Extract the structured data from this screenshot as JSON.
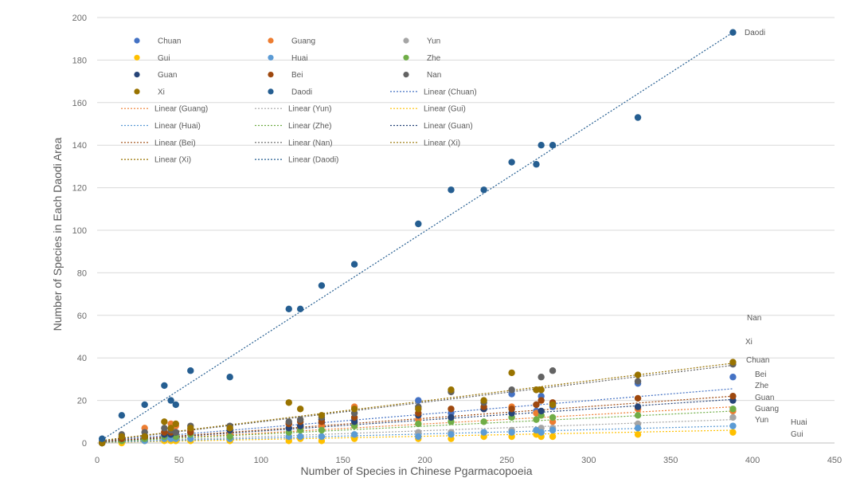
{
  "chart_data": {
    "type": "scatter",
    "title": "",
    "xlabel": "Number of Species in Chinese Pgarmacopoeia",
    "ylabel": "Number of Species in Each Daodi Area",
    "xlim": [
      0,
      450
    ],
    "ylim": [
      0,
      200
    ],
    "xticks": [
      0,
      50,
      100,
      150,
      200,
      250,
      300,
      350,
      400,
      450
    ],
    "yticks": [
      0,
      20,
      40,
      60,
      80,
      100,
      120,
      140,
      160,
      180,
      200
    ],
    "grid": "horizontal",
    "legend": "top-left",
    "legend_entries": [
      "Chuan",
      "Guang",
      "Yun",
      "Gui",
      "Huai",
      "Zhe",
      "Guan",
      "Bei",
      "Nan",
      "Xi",
      "Daodi",
      "Linear (Chuan)",
      "Linear (Guang)",
      "Linear (Yun)",
      "Linear (Gui)",
      "Linear (Huai)",
      "Linear (Zhe)",
      "Linear (Guan)",
      "Linear (Bei)",
      "Linear (Nan)",
      "Linear (Xi)",
      "Linear (Xi)",
      "Linear (Daodi)"
    ],
    "x": [
      3,
      15,
      29,
      41,
      45,
      48,
      57,
      81,
      117,
      124,
      137,
      157,
      196,
      216,
      236,
      253,
      268,
      271,
      278,
      330,
      388
    ],
    "series": [
      {
        "name": "Chuan",
        "color": "#4472c4",
        "values": [
          1,
          2,
          3,
          4,
          3,
          4,
          6,
          4,
          7,
          8,
          9,
          11,
          20,
          14,
          16,
          23,
          15,
          22,
          17,
          28,
          31
        ],
        "trend": [
          1.0,
          25.5
        ],
        "end_label": "Chuan"
      },
      {
        "name": "Guang",
        "color": "#ed7d31",
        "values": [
          0,
          1,
          7,
          5,
          9,
          8,
          6,
          4,
          9,
          7,
          8,
          17,
          11,
          12,
          16,
          17,
          14,
          13,
          10,
          16,
          15
        ],
        "trend": [
          0.5,
          17.0
        ],
        "end_label": "Guang"
      },
      {
        "name": "Yun",
        "color": "#a5a5a5",
        "values": [
          0,
          1,
          1,
          2,
          2,
          1,
          2,
          2,
          2,
          3,
          3,
          3,
          5,
          5,
          5,
          6,
          6,
          7,
          7,
          9,
          12
        ],
        "trend": [
          0.3,
          11.0
        ],
        "end_label": "Yun"
      },
      {
        "name": "Gui",
        "color": "#ffc000",
        "values": [
          0,
          0,
          1,
          1,
          1,
          1,
          1,
          1,
          1,
          2,
          1,
          2,
          2,
          2,
          3,
          3,
          4,
          3,
          3,
          4,
          5
        ],
        "trend": [
          0.2,
          6.0
        ],
        "end_label": "Gui"
      },
      {
        "name": "Huai",
        "color": "#5b9bd5",
        "values": [
          0,
          1,
          1,
          2,
          2,
          2,
          2,
          2,
          3,
          3,
          3,
          4,
          3,
          4,
          5,
          5,
          6,
          5,
          6,
          7,
          8
        ],
        "trend": [
          0.3,
          8.0
        ],
        "end_label": "Huai"
      },
      {
        "name": "Zhe",
        "color": "#70ad47",
        "values": [
          0,
          1,
          2,
          3,
          4,
          3,
          4,
          3,
          5,
          6,
          6,
          8,
          9,
          10,
          10,
          12,
          11,
          13,
          12,
          13,
          16
        ],
        "trend": [
          0.5,
          15.0
        ],
        "end_label": "Zhe"
      },
      {
        "name": "Guan",
        "color": "#264478",
        "values": [
          0,
          2,
          3,
          4,
          4,
          5,
          5,
          6,
          7,
          8,
          11,
          10,
          13,
          12,
          16,
          14,
          18,
          15,
          18,
          17,
          20
        ],
        "trend": [
          0.6,
          20.5
        ],
        "end_label": "Guan"
      },
      {
        "name": "Bei",
        "color": "#9e480e",
        "values": [
          0,
          2,
          3,
          5,
          5,
          5,
          5,
          7,
          9,
          10,
          10,
          12,
          14,
          16,
          17,
          16,
          18,
          20,
          19,
          21,
          22
        ],
        "trend": [
          0.7,
          22.0
        ],
        "end_label": "Bei"
      },
      {
        "name": "Nan",
        "color": "#636363",
        "values": [
          0,
          4,
          5,
          7,
          6,
          5,
          8,
          8,
          10,
          11,
          12,
          14,
          17,
          24,
          19,
          25,
          25,
          31,
          34,
          29,
          37
        ],
        "trend": [
          1.0,
          36.5
        ],
        "end_label": "Nan"
      },
      {
        "name": "Xi",
        "color": "#997300",
        "values": [
          0,
          3,
          3,
          10,
          7,
          9,
          7,
          7,
          19,
          16,
          13,
          16,
          16,
          25,
          20,
          33,
          25,
          25,
          18,
          32,
          38
        ],
        "trend": [
          1.2,
          37.5
        ],
        "end_label": "Xi"
      },
      {
        "name": "Daodi",
        "color": "#255e91",
        "values": [
          2,
          13,
          18,
          27,
          20,
          18,
          34,
          31,
          63,
          63,
          74,
          84,
          103,
          119,
          119,
          132,
          131,
          140,
          140,
          153,
          193
        ],
        "trend": [
          1.5,
          193.0
        ],
        "end_label": "Daodi"
      }
    ]
  }
}
